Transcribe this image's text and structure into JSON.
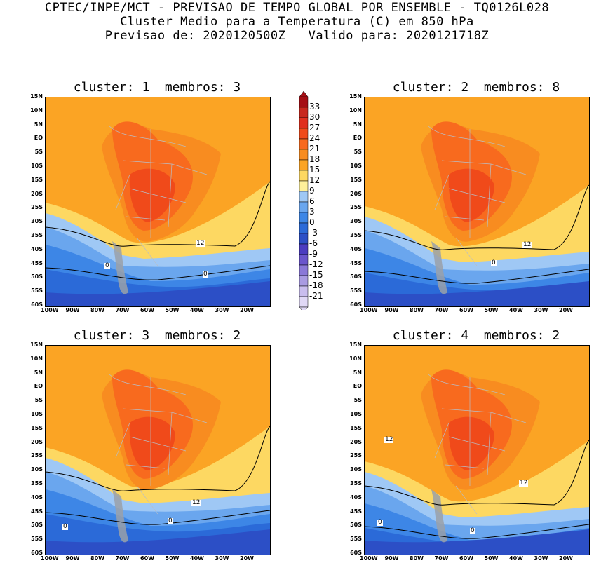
{
  "header": {
    "line1": "CPTEC/INPE/MCT - PREVISAO DE TEMPO GLOBAL POR ENSEMBLE - TQ0126L028",
    "line2": "Cluster Medio para a Temperatura (C) em 850 hPa",
    "line3": "Previsao de: 2020120500Z   Valido para: 2020121718Z"
  },
  "panels": [
    {
      "title": "cluster: 1  membros: 3",
      "contour_labels": [
        "12",
        "0",
        "0"
      ]
    },
    {
      "title": "cluster: 2  membros: 8",
      "contour_labels": [
        "12",
        "0"
      ]
    },
    {
      "title": "cluster: 3  membros: 2",
      "contour_labels": [
        "12",
        "0",
        "0"
      ]
    },
    {
      "title": "cluster: 4  membros: 2",
      "contour_labels": [
        "12",
        "12",
        "0",
        "0"
      ]
    }
  ],
  "y_ticks": [
    "15N",
    "10N",
    "5N",
    "EQ",
    "5S",
    "10S",
    "15S",
    "20S",
    "25S",
    "30S",
    "35S",
    "40S",
    "45S",
    "50S",
    "55S",
    "60S"
  ],
  "x_ticks": [
    "100W",
    "90W",
    "80W",
    "70W",
    "60W",
    "50W",
    "40W",
    "30W",
    "20W"
  ],
  "colorbar": {
    "levels": [
      "33",
      "30",
      "27",
      "24",
      "21",
      "18",
      "15",
      "12",
      "9",
      "6",
      "3",
      "0",
      "-3",
      "-6",
      "-9",
      "-12",
      "-15",
      "-18",
      "-21"
    ],
    "colors": [
      "#a50f15",
      "#c8281e",
      "#e0301e",
      "#f04a1a",
      "#f86a1e",
      "#f88c20",
      "#fba424",
      "#fdd862",
      "#fef09a",
      "#9fc8f5",
      "#6aa6ee",
      "#3d86e6",
      "#2b6ad8",
      "#2c4fc6",
      "#4b3cc0",
      "#6a55cc",
      "#8a78d8",
      "#a99be2",
      "#c9bdee",
      "#e0d8f6"
    ]
  }
}
